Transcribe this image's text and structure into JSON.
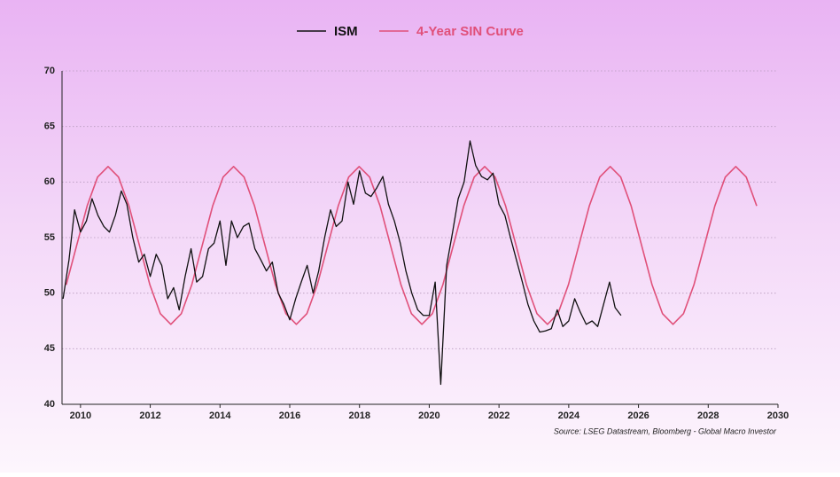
{
  "chart_data": {
    "type": "line",
    "source": "Source: LSEG Datastream, Bloomberg - Global Macro Investor",
    "xlim": [
      2009.47,
      2030
    ],
    "xticks": [
      2010,
      2012,
      2014,
      2016,
      2018,
      2020,
      2022,
      2024,
      2026,
      2028,
      2030
    ],
    "ylim": [
      40,
      70
    ],
    "yticks": [
      40,
      45,
      50,
      55,
      60,
      65,
      70
    ],
    "grid": true,
    "series": [
      {
        "name": "ISM",
        "color": "#111111",
        "x": [
          2009.5,
          2009.67,
          2009.83,
          2010.0,
          2010.17,
          2010.33,
          2010.5,
          2010.67,
          2010.83,
          2011.0,
          2011.17,
          2011.33,
          2011.5,
          2011.67,
          2011.83,
          2012.0,
          2012.17,
          2012.33,
          2012.5,
          2012.67,
          2012.83,
          2013.0,
          2013.17,
          2013.33,
          2013.5,
          2013.67,
          2013.83,
          2014.0,
          2014.17,
          2014.33,
          2014.5,
          2014.67,
          2014.83,
          2015.0,
          2015.17,
          2015.33,
          2015.5,
          2015.67,
          2015.83,
          2016.0,
          2016.17,
          2016.33,
          2016.5,
          2016.67,
          2016.83,
          2017.0,
          2017.17,
          2017.33,
          2017.5,
          2017.67,
          2017.83,
          2018.0,
          2018.17,
          2018.33,
          2018.5,
          2018.67,
          2018.83,
          2019.0,
          2019.17,
          2019.33,
          2019.5,
          2019.67,
          2019.83,
          2020.0,
          2020.17,
          2020.33,
          2020.5,
          2020.67,
          2020.83,
          2021.0,
          2021.17,
          2021.33,
          2021.5,
          2021.67,
          2021.83,
          2022.0,
          2022.17,
          2022.33,
          2022.5,
          2022.67,
          2022.83,
          2023.0,
          2023.17,
          2023.33,
          2023.5,
          2023.67,
          2023.83,
          2024.0,
          2024.17,
          2024.33,
          2024.5,
          2024.67,
          2024.83,
          2025.0,
          2025.17,
          2025.33,
          2025.5
        ],
        "values": [
          49.5,
          53,
          57.5,
          55.5,
          56.5,
          58.5,
          57,
          56,
          55.5,
          57,
          59.2,
          58,
          55,
          52.8,
          53.5,
          51.5,
          53.5,
          52.5,
          49.5,
          50.5,
          48.5,
          51.5,
          54,
          51,
          51.5,
          54,
          54.5,
          56.5,
          52.5,
          56.5,
          55,
          56,
          56.3,
          54,
          53,
          52,
          52.8,
          50,
          49,
          47.6,
          49.5,
          51,
          52.5,
          50,
          52,
          55,
          57.5,
          56,
          56.5,
          60,
          58,
          61,
          59,
          58.7,
          59.5,
          60.5,
          58,
          56.5,
          54.5,
          52,
          50,
          48.5,
          48,
          48,
          51,
          41.8,
          52.5,
          55.5,
          58.5,
          60,
          63.7,
          61.5,
          60.5,
          60.2,
          60.8,
          58,
          57,
          55,
          53,
          51,
          49,
          47.5,
          46.5,
          46.6,
          46.8,
          48.5,
          47,
          47.5,
          49.5,
          48.3,
          47.2,
          47.5,
          47,
          49,
          51,
          48.7,
          48
        ]
      },
      {
        "name": "4-Year SIN Curve",
        "color": "#e0507a",
        "x": [
          2009.59,
          2009.89,
          2010.19,
          2010.49,
          2010.79,
          2011.09,
          2011.39,
          2011.69,
          2011.99,
          2012.29,
          2012.59,
          2012.89,
          2013.19,
          2013.49,
          2013.79,
          2014.09,
          2014.39,
          2014.69,
          2014.99,
          2015.29,
          2015.59,
          2015.89,
          2016.19,
          2016.49,
          2016.79,
          2017.09,
          2017.39,
          2017.69,
          2017.99,
          2018.29,
          2018.59,
          2018.89,
          2019.19,
          2019.49,
          2019.79,
          2020.09,
          2020.39,
          2020.69,
          2020.99,
          2021.29,
          2021.59,
          2021.89,
          2022.19,
          2022.49,
          2022.79,
          2023.09,
          2023.39,
          2023.69,
          2023.99,
          2024.29,
          2024.59,
          2024.89,
          2025.19,
          2025.49,
          2025.79,
          2026.09,
          2026.39,
          2026.69,
          2026.99,
          2027.29,
          2027.59,
          2027.89,
          2028.19,
          2028.49,
          2028.79,
          2029.09,
          2029.39
        ],
        "values": [
          50.75,
          54.3,
          57.85,
          60.45,
          61.4,
          60.45,
          57.85,
          54.3,
          50.75,
          48.15,
          47.2,
          48.15,
          50.75,
          54.3,
          57.85,
          60.45,
          61.4,
          60.45,
          57.85,
          54.3,
          50.75,
          48.15,
          47.2,
          48.15,
          50.75,
          54.3,
          57.85,
          60.45,
          61.4,
          60.45,
          57.85,
          54.3,
          50.75,
          48.15,
          47.2,
          48.15,
          50.75,
          54.3,
          57.85,
          60.45,
          61.4,
          60.45,
          57.85,
          54.3,
          50.75,
          48.15,
          47.2,
          48.15,
          50.75,
          54.3,
          57.85,
          60.45,
          61.4,
          60.45,
          57.85,
          54.3,
          50.75,
          48.15,
          47.2,
          48.15,
          50.75,
          54.3,
          57.85,
          60.45,
          61.4,
          60.45,
          57.85
        ]
      }
    ]
  }
}
